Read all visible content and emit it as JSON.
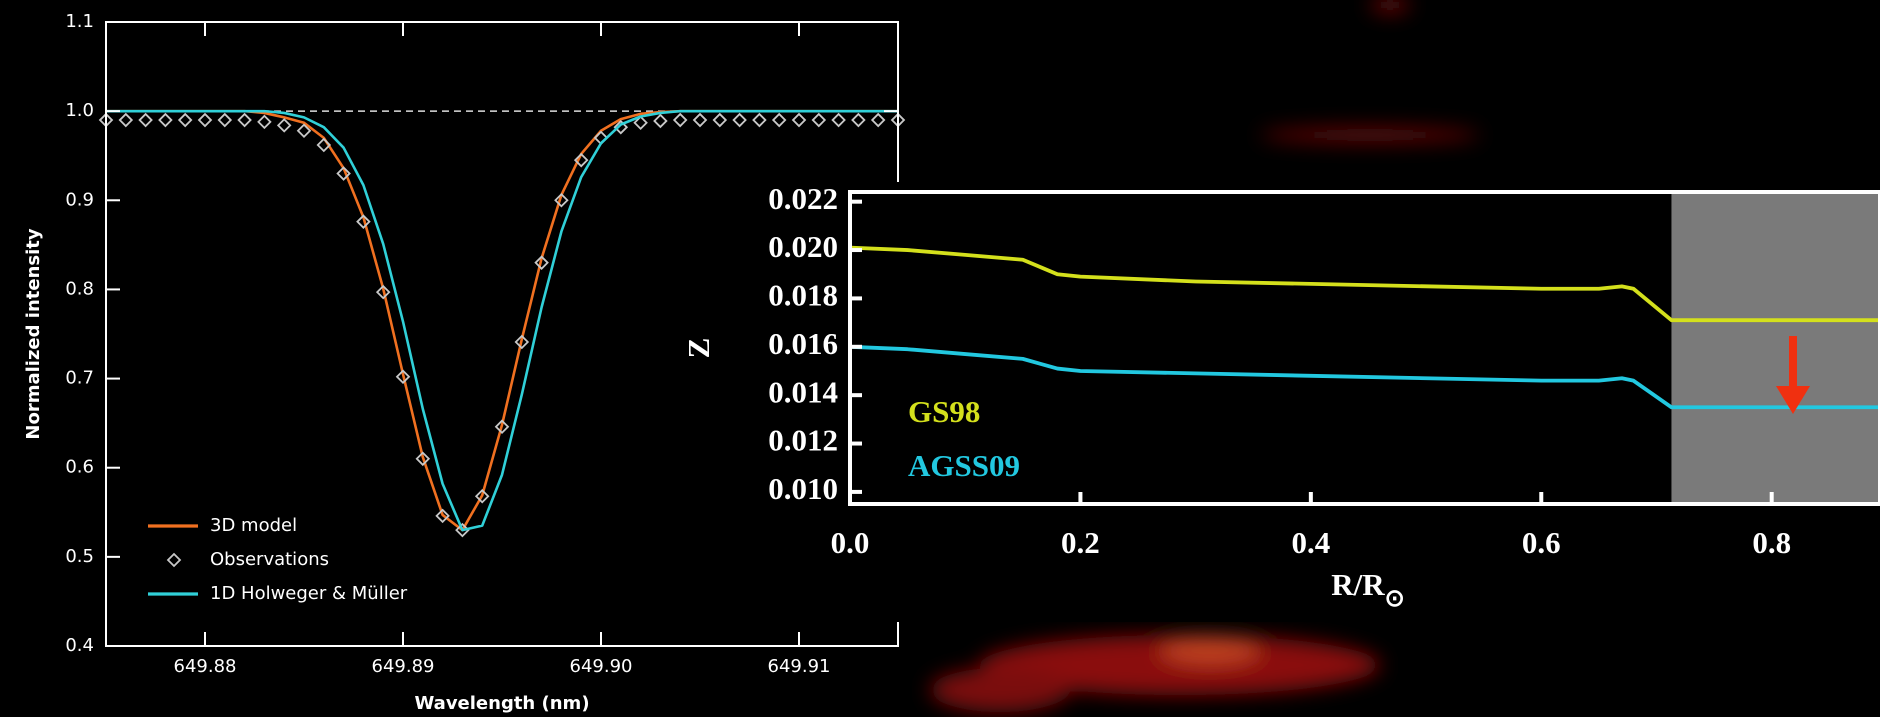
{
  "chart_data": [
    {
      "type": "line",
      "ylabel": "Normalized intensity",
      "xlabel": "Wavelength (nm)",
      "x": [
        649.875,
        649.876,
        649.877,
        649.878,
        649.879,
        649.88,
        649.881,
        649.882,
        649.883,
        649.884,
        649.885,
        649.886,
        649.887,
        649.888,
        649.889,
        649.89,
        649.891,
        649.892,
        649.893,
        649.894,
        649.895,
        649.896,
        649.897,
        649.898,
        649.899,
        649.9,
        649.901,
        649.902,
        649.903,
        649.904,
        649.905,
        649.906,
        649.907,
        649.908,
        649.909,
        649.91,
        649.911,
        649.912,
        649.913,
        649.914,
        649.915
      ],
      "series": [
        {
          "name": "3D model",
          "color": "#f07020",
          "mode": "line",
          "values": [
            1.0,
            1.0,
            1.0,
            1.0,
            1.0,
            1.0,
            1.0,
            1.0,
            0.998,
            0.993,
            0.987,
            0.97,
            0.936,
            0.881,
            0.801,
            0.705,
            0.612,
            0.547,
            0.53,
            0.569,
            0.648,
            0.744,
            0.835,
            0.906,
            0.952,
            0.978,
            0.991,
            0.997,
            0.999,
            1.0,
            1.0,
            1.0,
            1.0,
            1.0,
            1.0,
            1.0,
            1.0,
            1.0,
            1.0,
            1.0,
            1.0
          ]
        },
        {
          "name": "Observations",
          "color": "#c8c8c8",
          "mode": "markers",
          "values": [
            0.99,
            0.99,
            0.99,
            0.99,
            0.99,
            0.99,
            0.99,
            0.99,
            0.988,
            0.984,
            0.978,
            0.962,
            0.93,
            0.876,
            0.797,
            0.702,
            0.61,
            0.546,
            0.53,
            0.568,
            0.646,
            0.741,
            0.83,
            0.9,
            0.945,
            0.97,
            0.982,
            0.987,
            0.989,
            0.99,
            0.99,
            0.99,
            0.99,
            0.99,
            0.99,
            0.99,
            0.99,
            0.99,
            0.99,
            0.99,
            0.99
          ]
        },
        {
          "name": "1D Holweger & Müller",
          "color": "#30d0d8",
          "mode": "line",
          "values": [
            1.0,
            1.0,
            1.0,
            1.0,
            1.0,
            1.0,
            1.0,
            1.0,
            1.0,
            0.998,
            0.993,
            0.982,
            0.959,
            0.917,
            0.851,
            0.764,
            0.666,
            0.582,
            0.53,
            0.535,
            0.592,
            0.682,
            0.78,
            0.865,
            0.926,
            0.964,
            0.985,
            0.994,
            0.998,
            1.0,
            1.0,
            1.0,
            1.0,
            1.0,
            1.0,
            1.0,
            1.0,
            1.0,
            1.0,
            1.0,
            1.0
          ]
        }
      ],
      "xlim": [
        649.875,
        649.915
      ],
      "xticks": [
        649.88,
        649.89,
        {
          "value": 649.9,
          "label": "649.90"
        },
        649.91
      ],
      "ylim": [
        0.4,
        1.1
      ],
      "yticks": [
        0.4,
        0.5,
        0.6,
        0.7,
        0.8,
        0.9,
        {
          "value": 1,
          "label": "1.0"
        },
        1.1
      ],
      "reference_line": 1,
      "legend": "lower left"
    },
    {
      "type": "line",
      "ylabel": "Z",
      "xlabel": {
        "text": "R/R",
        "subscript": "⊙"
      },
      "x": [
        0,
        0.05,
        0.1,
        0.15,
        0.18,
        0.2,
        0.3,
        0.4,
        0.5,
        0.6,
        0.65,
        0.67,
        0.68,
        0.713,
        0.8,
        0.894
      ],
      "series": [
        {
          "name": "GS98",
          "color": "#d4e01c",
          "mode": "line",
          "values": [
            0.0201,
            0.02,
            0.0198,
            0.0196,
            0.019,
            0.0189,
            0.0187,
            0.0186,
            0.0185,
            0.0184,
            0.0184,
            0.0185,
            0.0184,
            0.0171,
            0.0171,
            0.0171
          ]
        },
        {
          "name": "AGSS09",
          "color": "#22c8e0",
          "mode": "line",
          "values": [
            0.016,
            0.0159,
            0.0157,
            0.0155,
            0.0151,
            0.015,
            0.0149,
            0.0148,
            0.0147,
            0.0146,
            0.0146,
            0.0147,
            0.0146,
            0.0135,
            0.0135,
            0.0135
          ]
        }
      ],
      "xlim": [
        0,
        0.894
      ],
      "xticks": [
        {
          "value": 0,
          "label": "0.0"
        },
        0.2,
        0.4,
        0.6,
        0.8
      ],
      "ylim": [
        0.0095,
        0.0224
      ],
      "yticks": [
        {
          "value": 0.01,
          "label": "0.010"
        },
        0.012,
        0.014,
        0.016,
        0.018,
        {
          "value": 0.02,
          "label": "0.020"
        },
        0.022
      ],
      "shaded_region": {
        "xmin": 0.713,
        "color": "#7a7a7a"
      },
      "legend": "lower left"
    }
  ]
}
